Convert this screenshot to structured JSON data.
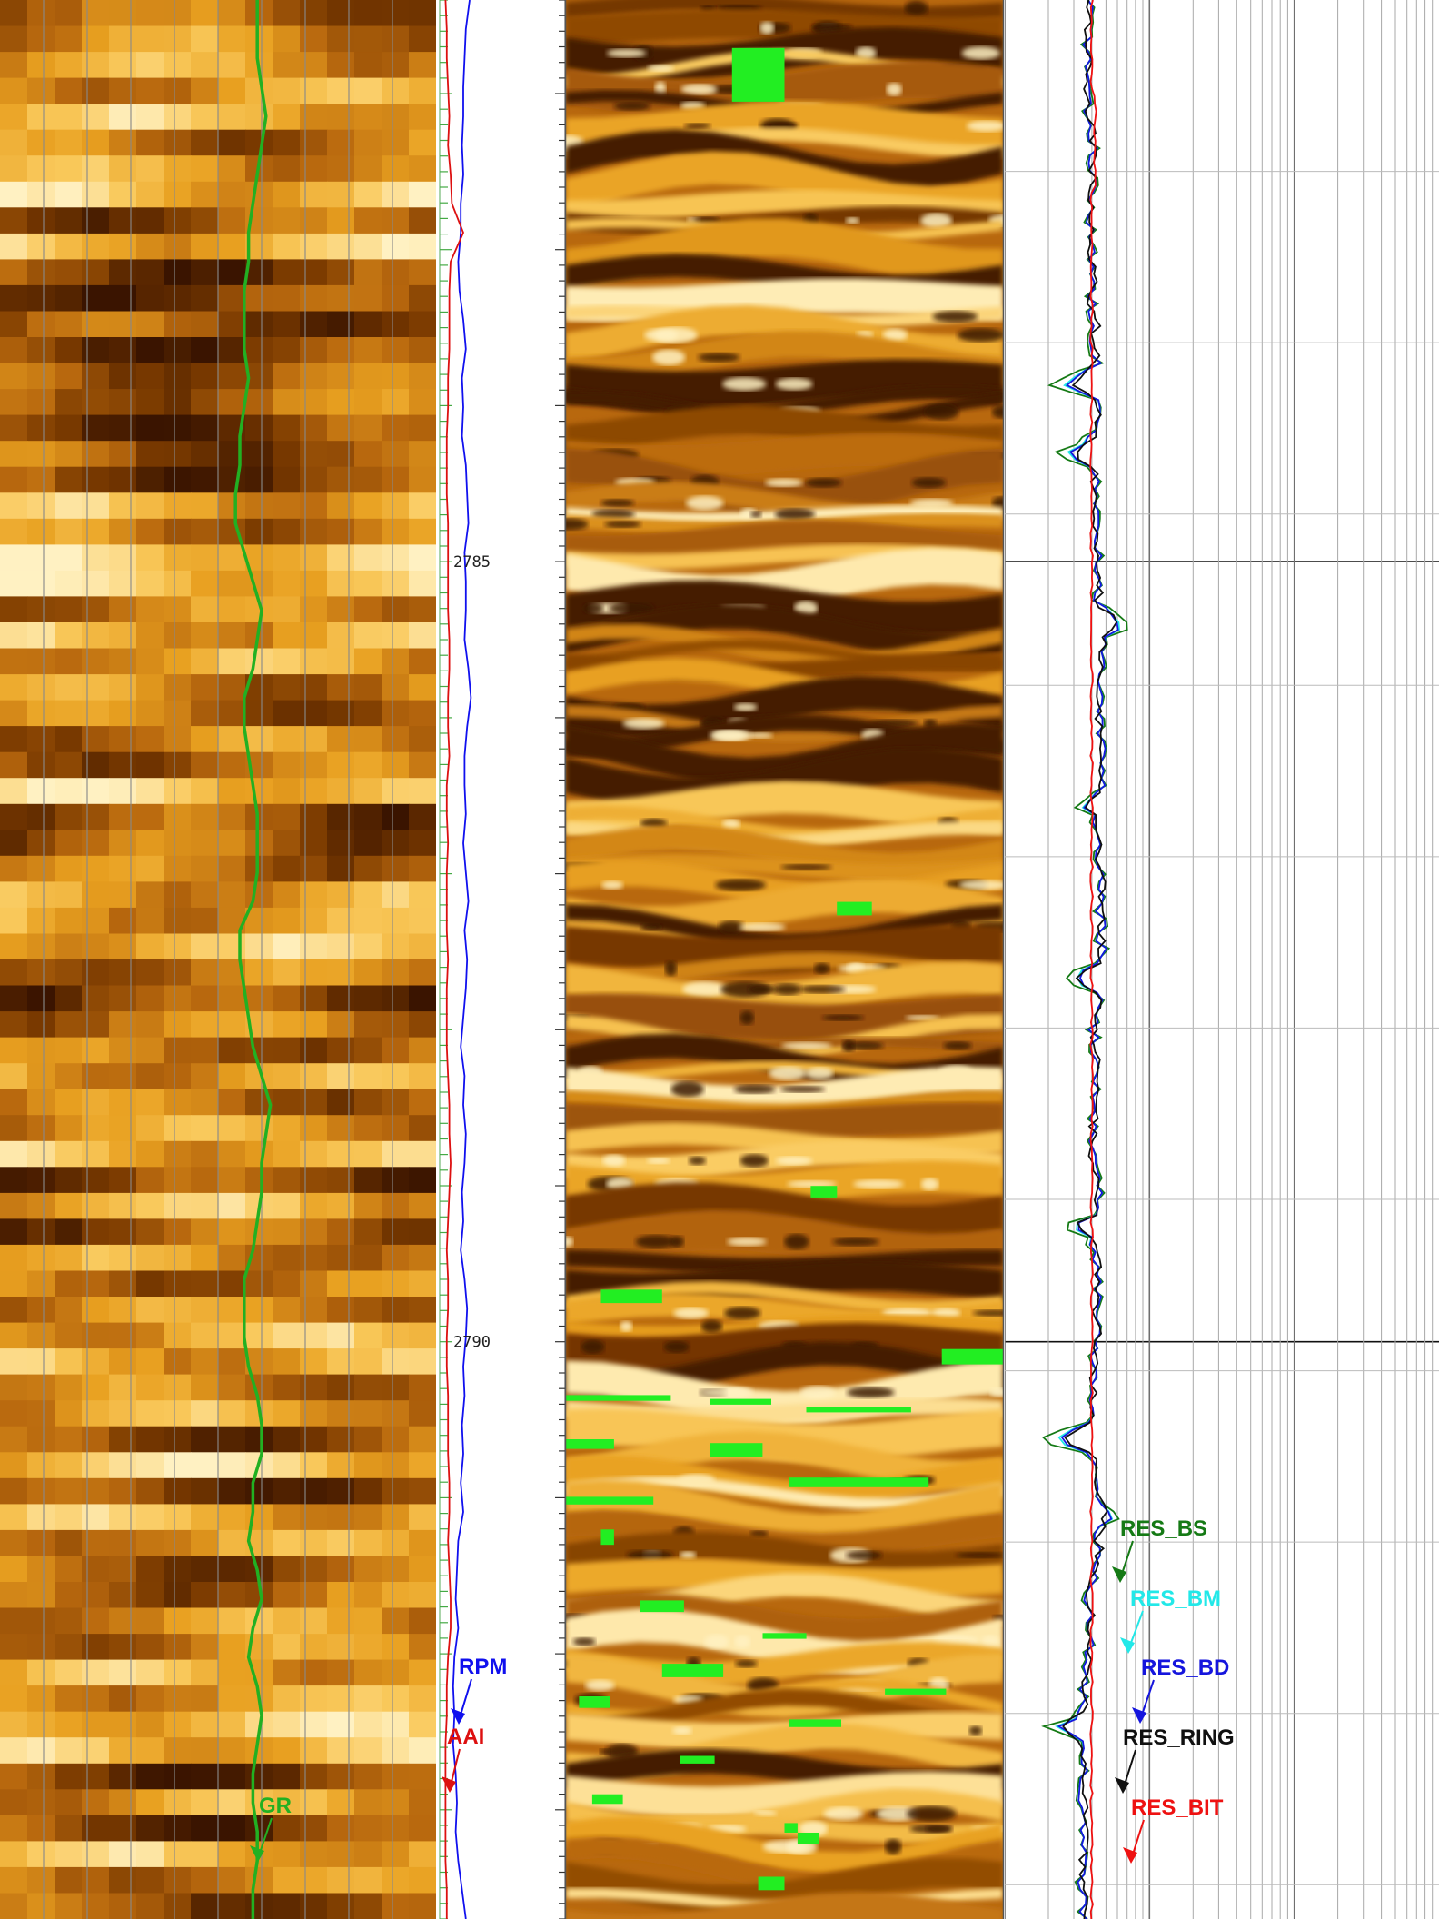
{
  "chart_data": {
    "type": "line",
    "y_axis": "depth",
    "ylim": [
      2781.4,
      2793.7
    ],
    "depth_labels": [
      {
        "depth": 2785,
        "label": "2785"
      },
      {
        "depth": 2790,
        "label": "2790"
      }
    ],
    "image_palette": [
      "#3a1400",
      "#7a3a00",
      "#b8680e",
      "#e8a020",
      "#f9c85a",
      "#fff1c2"
    ],
    "gap_color": "#22ee22",
    "tracks": [
      {
        "name": "track-1-image-gr",
        "image": "azimuthal-density-image",
        "grid": true,
        "series": [
          {
            "name": "GR",
            "color": "#22b022",
            "x_norm": [
              0.59,
              0.59,
              0.59,
              0.6,
              0.61,
              0.6,
              0.59,
              0.58,
              0.57,
              0.57,
              0.56,
              0.56,
              0.56,
              0.57,
              0.56,
              0.55,
              0.55,
              0.54,
              0.54,
              0.56,
              0.58,
              0.6,
              0.59,
              0.58,
              0.56,
              0.56,
              0.57,
              0.58,
              0.59,
              0.59,
              0.59,
              0.58,
              0.55,
              0.55,
              0.56,
              0.57,
              0.58,
              0.6,
              0.62,
              0.61,
              0.6,
              0.6,
              0.59,
              0.58,
              0.56,
              0.56,
              0.56,
              0.57,
              0.59,
              0.6,
              0.6,
              0.58,
              0.58,
              0.57,
              0.59,
              0.6,
              0.58,
              0.57,
              0.59,
              0.6,
              0.59,
              0.58,
              0.58,
              0.59,
              0.59,
              0.58,
              0.58
            ]
          }
        ]
      },
      {
        "name": "track-2-depth",
        "series": [
          {
            "name": "RPM",
            "color": "#1010ee",
            "x_norm": [
              0.25,
              0.22,
              0.21,
              0.2,
              0.2,
              0.19,
              0.2,
              0.18,
              0.18,
              0.16,
              0.17,
              0.2,
              0.22,
              0.19,
              0.2,
              0.19,
              0.22,
              0.23,
              0.24,
              0.21,
              0.22,
              0.22,
              0.21,
              0.24,
              0.26,
              0.23,
              0.21,
              0.21,
              0.22,
              0.2,
              0.22,
              0.24,
              0.21,
              0.23,
              0.22,
              0.2,
              0.18,
              0.21,
              0.2,
              0.22,
              0.21,
              0.19,
              0.2,
              0.18,
              0.21,
              0.23,
              0.22,
              0.2,
              0.21,
              0.19,
              0.2,
              0.18,
              0.2,
              0.16,
              0.15,
              0.14,
              0.16,
              0.13,
              0.12,
              0.13,
              0.12,
              0.14,
              0.15,
              0.14,
              0.16,
              0.19,
              0.22
            ]
          },
          {
            "name": "AAI",
            "color": "#dd1010",
            "x_norm": [
              0.06,
              0.07,
              0.07,
              0.08,
              0.09,
              0.08,
              0.1,
              0.11,
              0.2,
              0.1,
              0.09,
              0.09,
              0.09,
              0.08,
              0.08,
              0.07,
              0.07,
              0.07,
              0.08,
              0.08,
              0.08,
              0.08,
              0.09,
              0.09,
              0.08,
              0.08,
              0.09,
              0.07,
              0.07,
              0.08,
              0.07,
              0.07,
              0.07,
              0.08,
              0.07,
              0.07,
              0.07,
              0.08,
              0.09,
              0.09,
              0.1,
              0.09,
              0.08,
              0.07,
              0.08,
              0.08,
              0.07,
              0.07,
              0.08,
              0.08,
              0.08,
              0.09,
              0.09,
              0.08,
              0.09,
              0.1,
              0.1,
              0.08,
              0.07,
              0.07,
              0.06,
              0.06,
              0.06,
              0.06,
              0.06,
              0.07,
              0.07
            ]
          }
        ]
      },
      {
        "name": "track-3-image",
        "image": "resistivity-image"
      },
      {
        "name": "track-4-resistivity",
        "scale": "log",
        "grid": true,
        "series": [
          {
            "name": "RES_BS",
            "color": "#157a15"
          },
          {
            "name": "RES_BM",
            "color": "#22e8e8"
          },
          {
            "name": "RES_BD",
            "color": "#1515dd"
          },
          {
            "name": "RES_RING",
            "color": "#101010"
          },
          {
            "name": "RES_BIT",
            "color": "#ee1111"
          }
        ]
      }
    ]
  }
}
